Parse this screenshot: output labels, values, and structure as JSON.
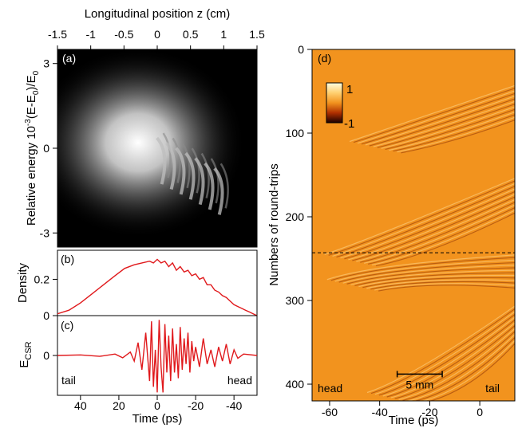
{
  "colors": {
    "trace": "#e0191c",
    "field_base": "#f2931e",
    "colorbar_top": "#fffde0",
    "colorbar_mid": "#f2931e",
    "colorbar_bottom": "#1a0000",
    "axis": "#000000"
  },
  "chart_data": [
    {
      "id": "a",
      "type": "heatmap",
      "panel_label": "(a)",
      "title": "",
      "xlabel": "",
      "ylabel": "Relative energy 10",
      "ylabel_sup": "-3",
      "ylabel_tail": "(E-E",
      "ylabel_sub": "0",
      "ylabel_end": ")/E",
      "ylabel_sub2": "0",
      "top_axis": {
        "label": "Longitudinal position z (cm)",
        "ticks": [
          "-1.5",
          "-1",
          "-0.5",
          "0",
          "0.5",
          "1",
          "1.5"
        ],
        "lim": [
          -1.5,
          1.5
        ]
      },
      "xlim": [
        52,
        -52
      ],
      "ylim": [
        -3.5,
        3.5
      ],
      "yticks": [
        "3",
        "0",
        "-3"
      ],
      "ytick_values": [
        3,
        0,
        -3
      ],
      "colormap": "gray",
      "core": {
        "t": 10,
        "e": 0.2
      },
      "fringes_t": [
        -4,
        -9,
        -14,
        -19,
        -24,
        -29,
        -34
      ]
    },
    {
      "id": "b",
      "type": "line",
      "panel_label": "(b)",
      "xlabel": "",
      "ylabel": "Density",
      "xlim": [
        52,
        -52
      ],
      "ylim": [
        0,
        0.36
      ],
      "yticks": [
        "0",
        "0.2"
      ],
      "ytick_values": [
        0,
        0.2
      ],
      "series": [
        {
          "x": [
            52,
            46,
            40,
            34,
            28,
            22,
            17,
            12,
            8,
            4,
            2,
            0,
            -2,
            -4,
            -6,
            -8,
            -10,
            -12,
            -14,
            -16,
            -18,
            -20,
            -22,
            -24,
            -26,
            -28,
            -30,
            -32,
            -34,
            -36,
            -38,
            -40,
            -42,
            -44,
            -46,
            -48,
            -50,
            -52
          ],
          "y": [
            0.01,
            0.03,
            0.07,
            0.12,
            0.17,
            0.22,
            0.26,
            0.28,
            0.29,
            0.3,
            0.29,
            0.31,
            0.29,
            0.3,
            0.27,
            0.29,
            0.25,
            0.27,
            0.24,
            0.25,
            0.22,
            0.23,
            0.2,
            0.21,
            0.17,
            0.17,
            0.14,
            0.13,
            0.11,
            0.1,
            0.08,
            0.06,
            0.05,
            0.04,
            0.03,
            0.02,
            0.01,
            0.0
          ]
        }
      ]
    },
    {
      "id": "c",
      "type": "line",
      "panel_label": "(c)",
      "xlabel": "Time (ps)",
      "ylabel": "E",
      "ylabel_sub": "CSR",
      "xlim": [
        52,
        -52
      ],
      "ylim": [
        -1.4,
        1.4
      ],
      "yticks": [
        "0"
      ],
      "ytick_values": [
        0
      ],
      "xticks": [
        "40",
        "20",
        "0",
        "-20",
        "-40"
      ],
      "xtick_values": [
        40,
        20,
        0,
        -20,
        -40
      ],
      "annotations": {
        "left": "tail",
        "right": "head"
      },
      "series": [
        {
          "x": [
            52,
            40,
            30,
            22,
            18,
            14,
            12,
            10,
            8,
            6,
            4,
            3,
            2,
            1,
            0,
            -1,
            -2,
            -3,
            -4,
            -5,
            -6,
            -7,
            -8,
            -9,
            -10,
            -11,
            -12,
            -13,
            -14,
            -15,
            -16,
            -17,
            -18,
            -19,
            -20,
            -22,
            -24,
            -26,
            -28,
            -30,
            -32,
            -34,
            -36,
            -38,
            -40,
            -42,
            -45,
            -52
          ],
          "y": [
            0.0,
            0.02,
            -0.03,
            0.05,
            -0.08,
            0.12,
            -0.2,
            0.45,
            -0.5,
            0.8,
            -0.9,
            1.2,
            -1.1,
            0.2,
            -1.3,
            1.25,
            -0.4,
            -1.3,
            1.1,
            -0.6,
            0.7,
            -0.9,
            0.95,
            -0.6,
            0.4,
            -0.8,
            1.0,
            -0.5,
            0.6,
            -0.3,
            0.8,
            -0.6,
            0.5,
            -0.2,
            0.3,
            -0.4,
            0.6,
            -0.3,
            0.2,
            -0.4,
            0.3,
            -0.2,
            0.4,
            -0.3,
            0.2,
            -0.1,
            0.05,
            0.0
          ]
        }
      ]
    },
    {
      "id": "d",
      "type": "heatmap",
      "panel_label": "(d)",
      "xlabel": "Time (ps)",
      "ylabel": "Numbers of round-trips",
      "xlim": [
        -67,
        14
      ],
      "ylim": [
        0,
        420
      ],
      "y_inverted": true,
      "xticks": [
        "-60",
        "-40",
        "-20",
        "0"
      ],
      "xtick_values": [
        -60,
        -40,
        -20,
        0
      ],
      "yticks": [
        "0",
        "100",
        "200",
        "300",
        "400"
      ],
      "ytick_values": [
        0,
        100,
        200,
        300,
        400
      ],
      "dashed_line_y": 243,
      "colorbar": {
        "max_label": "1",
        "min_label": "-1"
      },
      "scalebar": {
        "label": "5 mm",
        "x_from": -33,
        "x_to": -15,
        "y": 388
      },
      "annotations": {
        "left": "head",
        "right": "tail"
      },
      "events": [
        {
          "n_start": 40,
          "n_peak": 110,
          "t_tip": -52
        },
        {
          "n_start": 150,
          "n_peak": 245,
          "t_tip": -62
        },
        {
          "n_start": 245,
          "n_peak": 275,
          "t_tip": -61
        },
        {
          "n_start": 300,
          "n_peak": 410,
          "t_tip": -45
        }
      ]
    }
  ]
}
